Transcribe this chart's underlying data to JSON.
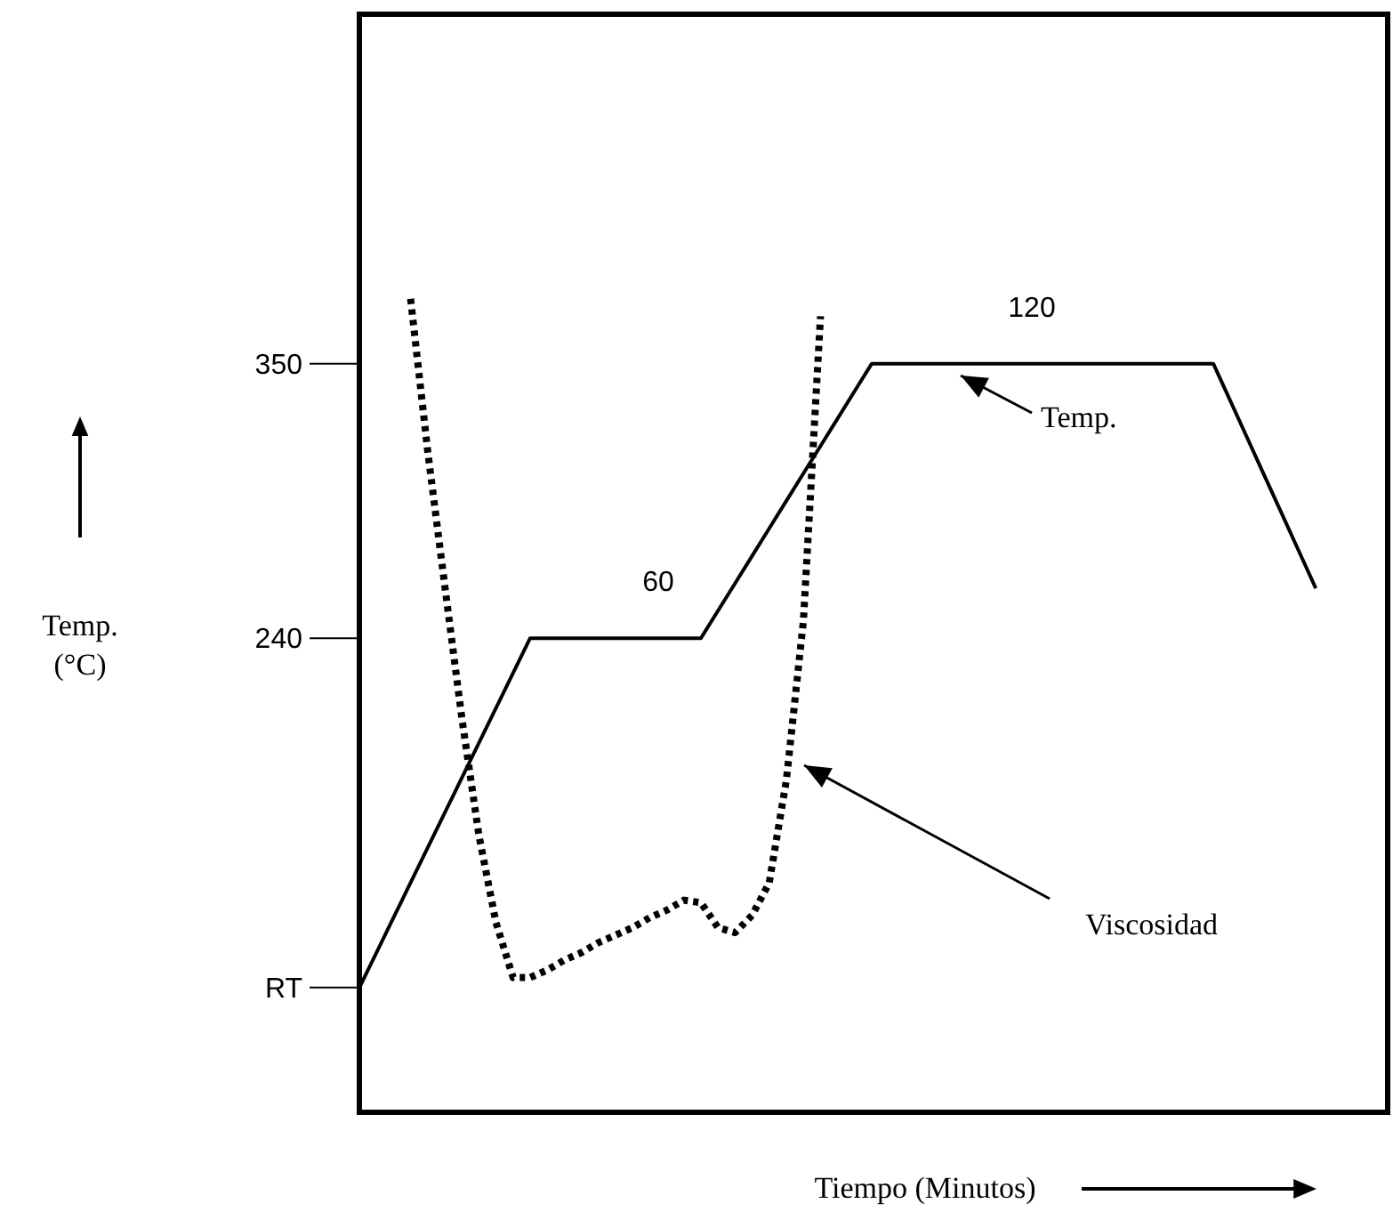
{
  "chart_data": {
    "type": "line",
    "ylabel": "Temp. (°C)",
    "xlabel": "Tiempo (Minutos)",
    "categories": [
      null,
      null,
      null,
      null,
      null,
      null,
      null,
      null,
      null,
      null,
      null,
      null,
      null,
      null,
      null,
      null,
      null,
      null,
      null,
      null,
      null,
      null,
      null,
      null,
      null,
      null,
      null,
      null,
      null,
      null,
      null,
      null,
      null,
      null,
      null,
      null,
      null,
      null,
      null,
      null,
      null,
      null,
      null,
      null,
      null,
      null,
      null,
      null,
      null,
      null,
      null,
      null,
      null,
      null,
      null,
      null,
      null,
      null,
      null,
      null,
      null
    ],
    "ylim": [
      50,
      490
    ],
    "yticks": [
      {
        "value": 100,
        "label": "RT"
      },
      240,
      350
    ],
    "tick_labels": "y",
    "grid": false,
    "annotations": [
      "60",
      "120"
    ],
    "series": [
      {
        "name": "Temp.",
        "color": "#000000",
        "line_style": "solid",
        "values": [
          100,
          114,
          128,
          142,
          156,
          170,
          184,
          198,
          212,
          226,
          240,
          240,
          240,
          240,
          240,
          240,
          240,
          240,
          240,
          240,
          240,
          251,
          262,
          273,
          284,
          295,
          306,
          317,
          328,
          339,
          350,
          350,
          350,
          350,
          350,
          350,
          350,
          350,
          350,
          350,
          350,
          350,
          350,
          350,
          350,
          350,
          350,
          350,
          350,
          350,
          350,
          335,
          320,
          305,
          290,
          275,
          260,
          null,
          null,
          null,
          null
        ]
      },
      {
        "name": "Viscosidad",
        "color": "#000000",
        "line_style": "dotted",
        "values": [
          null,
          null,
          null,
          376,
          315,
          261,
          208,
          161,
          126,
          104,
          104,
          107,
          111,
          114,
          118,
          121,
          124,
          128,
          131,
          135,
          134,
          124,
          122,
          129,
          142,
          183,
          247,
          369,
          null,
          null,
          null,
          null,
          null,
          null,
          null,
          null,
          null,
          null,
          null,
          null,
          null,
          null,
          null,
          null,
          null,
          null,
          null,
          null,
          null,
          null,
          null,
          null,
          null,
          null,
          null,
          null,
          null,
          null,
          null,
          null,
          null
        ]
      }
    ]
  }
}
